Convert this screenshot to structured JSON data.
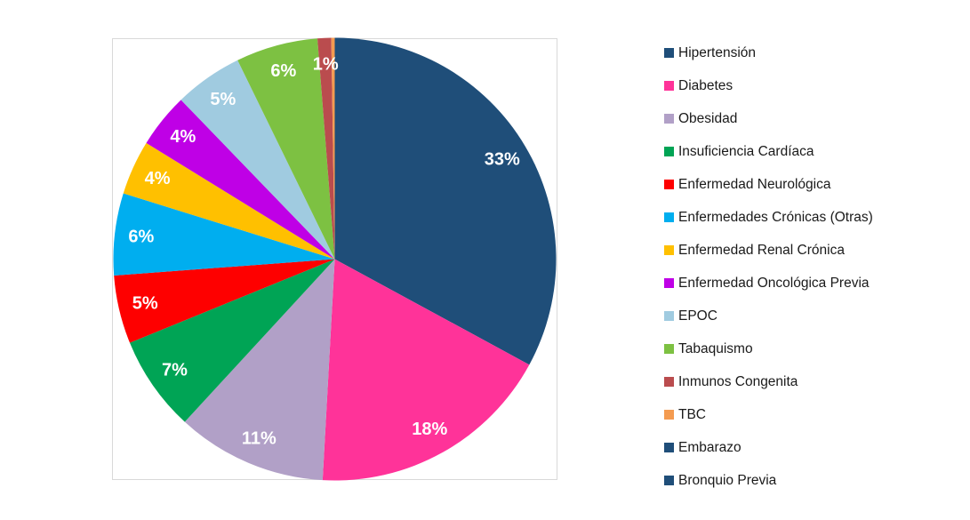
{
  "chart_data": {
    "type": "pie",
    "title": "",
    "legend_position": "right",
    "start_angle_deg": 0,
    "direction": "clockwise",
    "slices": [
      {
        "label": "Hipertensión",
        "value": 33,
        "display": "33%",
        "color": "#1F4E79"
      },
      {
        "label": "Diabetes",
        "value": 18,
        "display": "18%",
        "color": "#FF3399"
      },
      {
        "label": "Obesidad",
        "value": 11,
        "display": "11%",
        "color": "#B1A0C7"
      },
      {
        "label": "Insuficiencia Cardíaca",
        "value": 7,
        "display": "7%",
        "color": "#00A455"
      },
      {
        "label": "Enfermedad Neurológica",
        "value": 5,
        "display": "5%",
        "color": "#FE0000"
      },
      {
        "label": "Enfermedades Crónicas (Otras)",
        "value": 6,
        "display": "6%",
        "color": "#00AEEF"
      },
      {
        "label": "Enfermedad Renal Crónica",
        "value": 4,
        "display": "4%",
        "color": "#FFC000"
      },
      {
        "label": "Enfermedad Oncológica Previa",
        "value": 4,
        "display": "4%",
        "color": "#BF00E6"
      },
      {
        "label": "EPOC",
        "value": 5,
        "display": "5%",
        "color": "#A0CBE0"
      },
      {
        "label": "Tabaquismo",
        "value": 6,
        "display": "6%",
        "color": "#7DC142"
      },
      {
        "label": "Inmunos Congenita",
        "value": 1,
        "display": "1%",
        "color": "#BA4C4E"
      },
      {
        "label": "TBC",
        "value": 0.25,
        "display": "",
        "color": "#F49B50"
      },
      {
        "label": "Embarazo",
        "value": 0,
        "display": "",
        "color": "#1F4E79"
      },
      {
        "label": "Bronquio Previa",
        "value": 0,
        "display": "",
        "color": "#1F4E79"
      }
    ]
  },
  "colors": {
    "background": "#FFFFFF",
    "plot_border": "#D9D9D9",
    "slice_label_text": "#FFFFFF",
    "legend_text": "#1A1A1A"
  }
}
